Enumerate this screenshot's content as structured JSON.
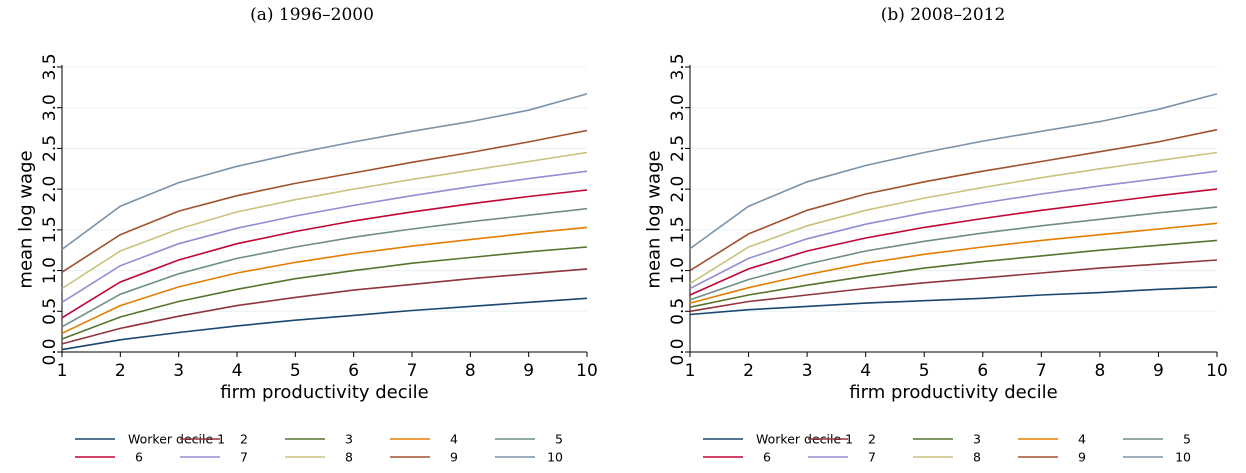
{
  "chart_data": [
    {
      "type": "line",
      "title": "(a) 1996–2000",
      "xlabel": "firm productivity decile",
      "ylabel": "mean log wage",
      "x": [
        1,
        2,
        3,
        4,
        5,
        6,
        7,
        8,
        9,
        10
      ],
      "xticks": [
        "1",
        "2",
        "3",
        "4",
        "5",
        "6",
        "7",
        "8",
        "9",
        "10"
      ],
      "yticks": [
        "0.0",
        "0.5",
        "1.0",
        "1.5",
        "2.0",
        "2.5",
        "3.0",
        "3.5"
      ],
      "ylim": [
        0,
        3.5
      ],
      "grid": true,
      "legend_position": "bottom",
      "series": [
        {
          "name": "Worker decile 1",
          "color": "#1a476f",
          "values": [
            0.03,
            0.15,
            0.24,
            0.32,
            0.39,
            0.45,
            0.51,
            0.56,
            0.61,
            0.66
          ]
        },
        {
          "name": "2",
          "color": "#90353b",
          "values": [
            0.1,
            0.29,
            0.44,
            0.57,
            0.67,
            0.76,
            0.83,
            0.9,
            0.96,
            1.02
          ]
        },
        {
          "name": "3",
          "color": "#55752f",
          "values": [
            0.16,
            0.43,
            0.62,
            0.77,
            0.9,
            1.0,
            1.09,
            1.16,
            1.23,
            1.29
          ]
        },
        {
          "name": "4",
          "color": "#e37e00",
          "values": [
            0.23,
            0.57,
            0.8,
            0.97,
            1.1,
            1.21,
            1.3,
            1.38,
            1.46,
            1.53
          ]
        },
        {
          "name": "5",
          "color": "#6e8e84",
          "values": [
            0.31,
            0.71,
            0.96,
            1.15,
            1.29,
            1.41,
            1.51,
            1.6,
            1.68,
            1.76
          ]
        },
        {
          "name": "6",
          "color": "#c10534",
          "values": [
            0.42,
            0.86,
            1.13,
            1.33,
            1.48,
            1.61,
            1.72,
            1.82,
            1.91,
            1.99
          ]
        },
        {
          "name": "7",
          "color": "#938dd2",
          "values": [
            0.61,
            1.06,
            1.33,
            1.52,
            1.67,
            1.8,
            1.92,
            2.03,
            2.13,
            2.22
          ]
        },
        {
          "name": "8",
          "color": "#cac27e",
          "values": [
            0.78,
            1.24,
            1.51,
            1.72,
            1.87,
            2.0,
            2.12,
            2.23,
            2.34,
            2.45
          ]
        },
        {
          "name": "9",
          "color": "#a0522d",
          "values": [
            0.98,
            1.44,
            1.73,
            1.92,
            2.07,
            2.2,
            2.33,
            2.45,
            2.58,
            2.72
          ]
        },
        {
          "name": "10",
          "color": "#7b92a8",
          "values": [
            1.26,
            1.79,
            2.08,
            2.28,
            2.44,
            2.58,
            2.71,
            2.83,
            2.97,
            3.17
          ]
        }
      ]
    },
    {
      "type": "line",
      "title": "(b) 2008–2012",
      "xlabel": "firm productivity decile",
      "ylabel": "mean log wage",
      "x": [
        1,
        2,
        3,
        4,
        5,
        6,
        7,
        8,
        9,
        10
      ],
      "xticks": [
        "1",
        "2",
        "3",
        "4",
        "5",
        "6",
        "7",
        "8",
        "9",
        "10"
      ],
      "yticks": [
        "0.0",
        "0.5",
        "1.0",
        "1.5",
        "2.0",
        "2.5",
        "3.0",
        "3.5"
      ],
      "ylim": [
        0,
        3.5
      ],
      "grid": true,
      "legend_position": "bottom",
      "series": [
        {
          "name": "Worker decile 1",
          "color": "#1a476f",
          "values": [
            0.46,
            0.52,
            0.56,
            0.6,
            0.63,
            0.66,
            0.7,
            0.73,
            0.77,
            0.8
          ]
        },
        {
          "name": "2",
          "color": "#90353b",
          "values": [
            0.5,
            0.62,
            0.7,
            0.78,
            0.85,
            0.91,
            0.97,
            1.03,
            1.08,
            1.13
          ]
        },
        {
          "name": "3",
          "color": "#55752f",
          "values": [
            0.55,
            0.7,
            0.82,
            0.93,
            1.03,
            1.11,
            1.18,
            1.25,
            1.31,
            1.37
          ]
        },
        {
          "name": "4",
          "color": "#e37e00",
          "values": [
            0.6,
            0.79,
            0.95,
            1.09,
            1.2,
            1.29,
            1.37,
            1.44,
            1.51,
            1.58
          ]
        },
        {
          "name": "5",
          "color": "#6e8e84",
          "values": [
            0.64,
            0.89,
            1.08,
            1.24,
            1.36,
            1.46,
            1.55,
            1.63,
            1.71,
            1.78
          ]
        },
        {
          "name": "6",
          "color": "#c10534",
          "values": [
            0.7,
            1.02,
            1.24,
            1.4,
            1.53,
            1.64,
            1.74,
            1.83,
            1.92,
            2.0
          ]
        },
        {
          "name": "7",
          "color": "#938dd2",
          "values": [
            0.78,
            1.15,
            1.39,
            1.57,
            1.71,
            1.83,
            1.94,
            2.04,
            2.13,
            2.22
          ]
        },
        {
          "name": "8",
          "color": "#cac27e",
          "values": [
            0.84,
            1.29,
            1.55,
            1.74,
            1.89,
            2.02,
            2.14,
            2.25,
            2.35,
            2.45
          ]
        },
        {
          "name": "9",
          "color": "#a0522d",
          "values": [
            1.0,
            1.45,
            1.74,
            1.94,
            2.09,
            2.22,
            2.34,
            2.46,
            2.58,
            2.73
          ]
        },
        {
          "name": "10",
          "color": "#7b92a8",
          "values": [
            1.27,
            1.79,
            2.09,
            2.29,
            2.45,
            2.59,
            2.71,
            2.83,
            2.98,
            3.17
          ]
        }
      ]
    }
  ]
}
